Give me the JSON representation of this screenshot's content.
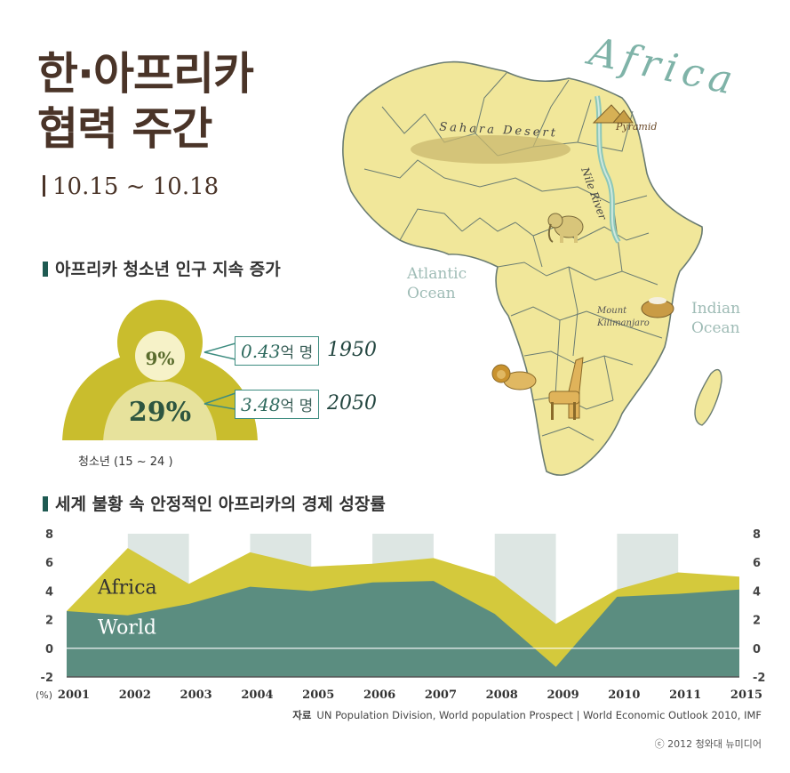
{
  "title_line1": "한·아프리카",
  "title_line2": "협력 주간",
  "date": "10.15 ~ 10.18",
  "section1_title": "아프리카 청소년 인구 지속 증가",
  "section2_title": "세계 불황 속 안정적인 아프리카의 경제 성장률",
  "youth": {
    "inner_percent": "9%",
    "outer_percent": "29%",
    "caption": "청소년 (15 ~ 24 )",
    "callouts": [
      {
        "value": "0.43",
        "unit": "억 명",
        "year": "1950"
      },
      {
        "value": "3.48",
        "unit": "억 명",
        "year": "2050"
      }
    ]
  },
  "map": {
    "title": "Africa",
    "labels": {
      "sahara": "Sahara Desert",
      "pyramid": "Pyramid",
      "nile": "Nile River",
      "atlantic1": "Atlantic",
      "atlantic2": "Ocean",
      "indian1": "Indian",
      "indian2": "Ocean",
      "kili1": "Mount",
      "kili2": "Kilimanjaro"
    }
  },
  "chart_data": {
    "type": "area",
    "x": [
      "2001",
      "2002",
      "2003",
      "2004",
      "2005",
      "2006",
      "2007",
      "2008",
      "2009",
      "2010",
      "2011",
      "2015"
    ],
    "series": [
      {
        "name": "Africa",
        "values": [
          2.6,
          7.0,
          4.5,
          6.7,
          5.7,
          5.9,
          6.3,
          5.0,
          1.7,
          4.1,
          5.3,
          5.0
        ],
        "color": "#d4c93c"
      },
      {
        "name": "World",
        "values": [
          2.6,
          2.3,
          3.1,
          4.3,
          4.0,
          4.6,
          4.7,
          2.4,
          -1.3,
          3.6,
          3.8,
          4.1
        ],
        "color": "#5b8d80"
      }
    ],
    "ylim": [
      -2,
      8
    ],
    "yticks": [
      "8",
      "6",
      "4",
      "2",
      "0",
      "-2"
    ],
    "unit_label": "(%)",
    "grid": "alternating column bands",
    "colors": {
      "band": "#dde6e3",
      "zero_line": "#ffffff",
      "axis": "#555555"
    }
  },
  "source_label": "자료",
  "source_text": "UN Population Division, World population Prospect  |  World Economic Outlook 2010, IMF",
  "copyright": "ⓒ 2012 청와대 뉴미디어"
}
